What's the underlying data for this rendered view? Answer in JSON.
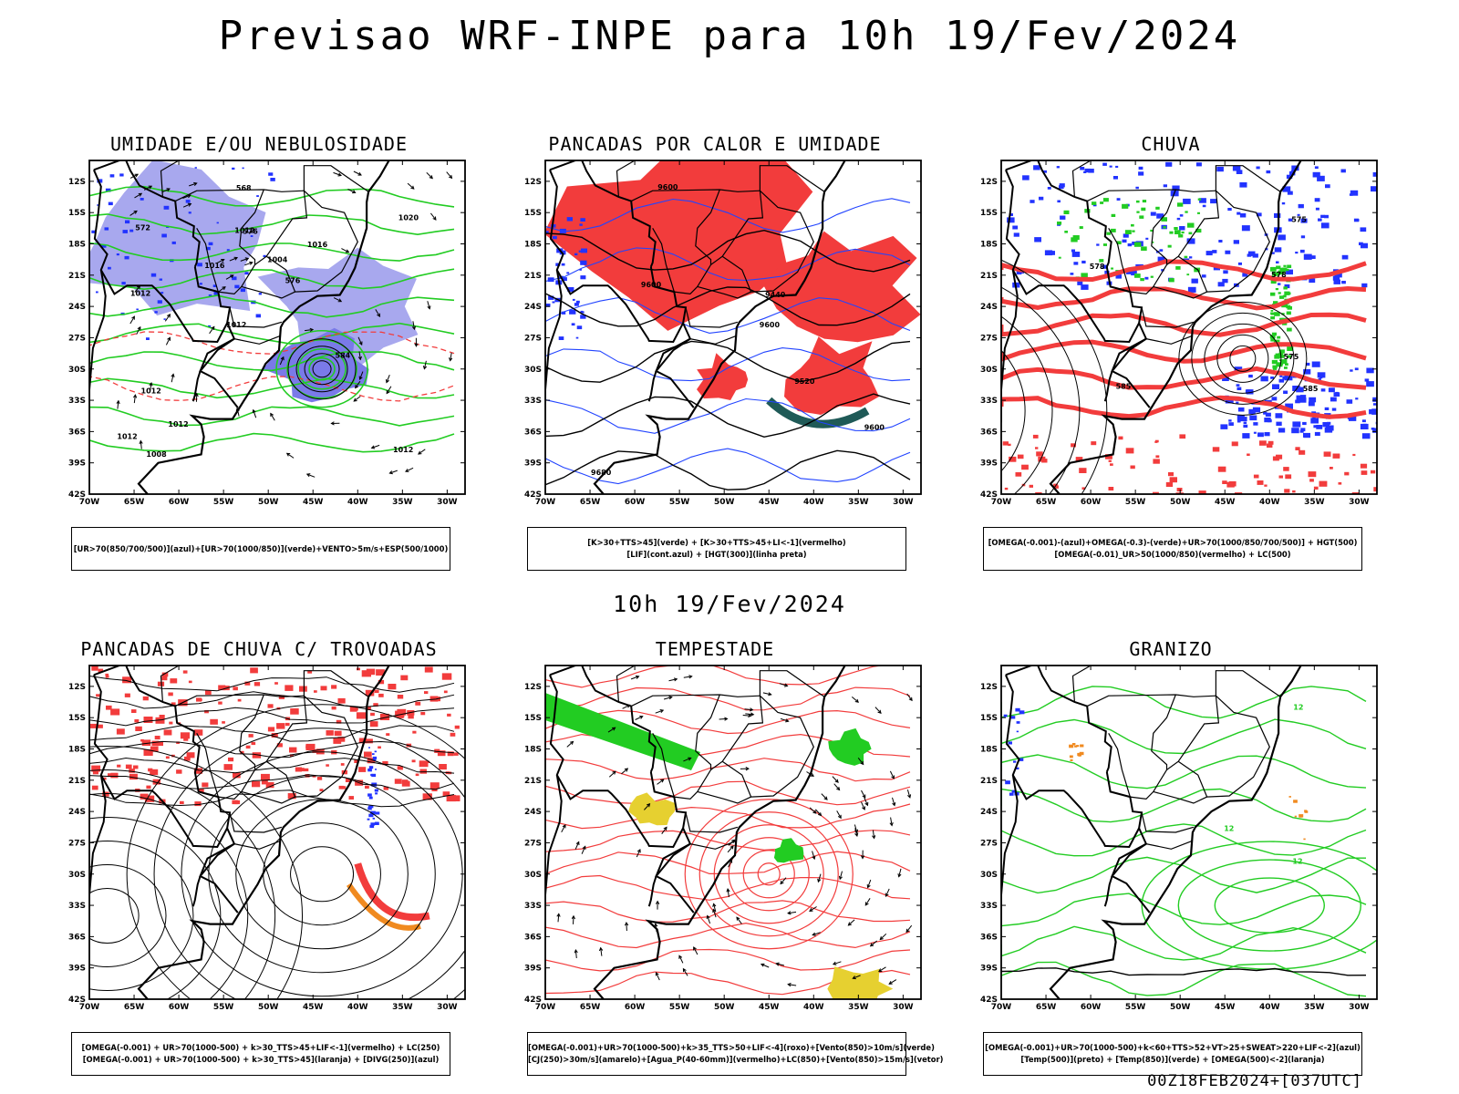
{
  "header": {
    "title": "Previsao WRF-INPE  para 10h 19/Fev/2024"
  },
  "subtitle": "10h 19/Fev/2024",
  "footer": "00Z18FEB2024+[037UTC]",
  "axes": {
    "lat_labels": [
      "12S",
      "15S",
      "18S",
      "21S",
      "24S",
      "27S",
      "30S",
      "33S",
      "36S",
      "39S",
      "42S"
    ],
    "lon_labels": [
      "70W",
      "65W",
      "60W",
      "55W",
      "50W",
      "45W",
      "40W",
      "35W",
      "30W"
    ]
  },
  "colors": {
    "blue": "#2233ff",
    "lavender": "#a8a8ee",
    "green": "#22cc22",
    "red": "#f23c3c",
    "teal": "#1f5a57",
    "orange": "#f08a20",
    "yellow": "#e6d030",
    "black": "#000000"
  },
  "panels": [
    {
      "title": "UMIDADE E/OU NEBULOSIDADE",
      "legend": [
        "[UR>70(850/700/500)](azul)+[UR>70(1000/850)](verde)+VENTO>5m/s+ESP(500/1000)"
      ]
    },
    {
      "title": "PANCADAS POR CALOR E UMIDADE",
      "legend": [
        "[K>30+TTS>45](verde)  +  [K>30+TTS>45+LI<-1](vermelho)",
        "[LIF](cont.azul)  +  [HGT(300)](linha preta)"
      ]
    },
    {
      "title": "CHUVA",
      "legend": [
        "[OMEGA(-0.001)-(azul)+OMEGA(-0.3)-(verde)+UR>70(1000/850/700/500)]  +  HGT(500)",
        "[OMEGA(-0.01)_UR>50(1000/850)(vermelho)  +  LC(500)"
      ]
    },
    {
      "title": "PANCADAS DE CHUVA C/ TROVOADAS",
      "legend": [
        "[OMEGA(-0.001)  +  UR>70(1000-500)  +  k>30_TTS>45+LIF<-1](vermelho)  +  LC(250)",
        "[OMEGA(-0.001)  +  UR>70(1000-500)  +  k>30_TTS>45](laranja)  +  [DIVG(250)](azul)"
      ]
    },
    {
      "title": "TEMPESTADE",
      "legend": [
        "[OMEGA(-0.001)+UR>70(1000-500)+k>35_TTS>50+LIF<-4](roxo)+[Vento(850)>10m/s](verde)",
        "[CJ(250)>30m/s](amarelo)+[Agua_P(40-60mm)](vermelho)+LC(850)+[Vento(850)>15m/s](vetor)"
      ]
    },
    {
      "title": "GRANIZO",
      "legend": [
        "[OMEGA(-0.001)+UR>70(1000-500)+k<60+TTS>52+VT>25+SWEAT>220+LIF<-2](azul)",
        "[Temp(500)](preto)  +  [Temp(850)](verde)  +  [OMEGA(500)<-2](laranja)"
      ]
    }
  ],
  "contour_labels": {
    "p1": [
      "1012",
      "1012",
      "1020",
      "1012",
      "1016",
      "1008",
      "1012",
      "1004",
      "1012",
      "1016",
      "1012",
      "1012",
      "576",
      "576",
      "584",
      "572",
      "568"
    ],
    "p2": [
      "9680",
      "9600",
      "9600",
      "9600",
      "9520",
      "9440",
      "9600"
    ],
    "p3": [
      "585",
      "575",
      "578",
      "575",
      "578",
      "585"
    ],
    "p6": [
      "12",
      "12",
      "12"
    ]
  }
}
